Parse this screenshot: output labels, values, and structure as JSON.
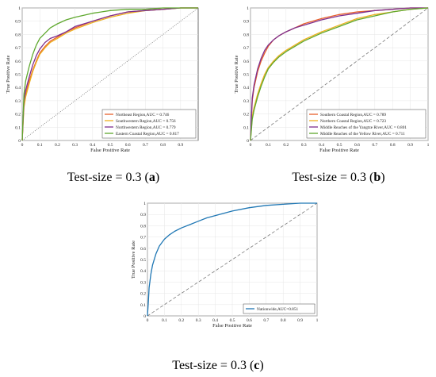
{
  "captions": [
    {
      "prefix": "Test-size = 0.3 (",
      "letter": "a",
      "suffix": ")"
    },
    {
      "prefix": "Test-size = 0.3 (",
      "letter": "b",
      "suffix": ")"
    },
    {
      "prefix": "Test-size = 0.3 (",
      "letter": "c",
      "suffix": ")"
    }
  ],
  "chart_data": [
    {
      "type": "line",
      "panel": "a",
      "xlabel": "False Positive Rate",
      "ylabel": "True Positive Rate",
      "xlim": [
        0,
        1
      ],
      "ylim": [
        0,
        1
      ],
      "xticks": [
        "0",
        "0.1",
        "0.2",
        "0.3",
        "0.4",
        "0.5",
        "0.6",
        "0.7",
        "0.8",
        "0.9"
      ],
      "yticks": [
        "0",
        "0.1",
        "0.2",
        "0.3",
        "0.4",
        "0.5",
        "0.6",
        "0.7",
        "0.8",
        "0.9",
        "1"
      ],
      "grid": true,
      "diagonal": "dotted",
      "legend": "bottom-right",
      "series": [
        {
          "name": "Northeast Region,AUC = 0.746",
          "color": "#e8602c",
          "x": [
            0,
            0.01,
            0.02,
            0.04,
            0.06,
            0.08,
            0.1,
            0.13,
            0.16,
            0.2,
            0.25,
            0.3,
            0.4,
            0.5,
            0.6,
            0.7,
            0.8,
            0.9,
            1
          ],
          "y": [
            0,
            0.28,
            0.35,
            0.45,
            0.53,
            0.6,
            0.66,
            0.71,
            0.75,
            0.78,
            0.82,
            0.85,
            0.9,
            0.94,
            0.97,
            0.98,
            0.99,
            1,
            1
          ]
        },
        {
          "name": "Southwestern Region,AUC = 0.756",
          "color": "#edb120",
          "x": [
            0,
            0.01,
            0.02,
            0.04,
            0.06,
            0.08,
            0.1,
            0.13,
            0.16,
            0.2,
            0.25,
            0.3,
            0.4,
            0.5,
            0.6,
            0.7,
            0.8,
            0.9,
            1
          ],
          "y": [
            0,
            0.25,
            0.33,
            0.43,
            0.52,
            0.59,
            0.65,
            0.7,
            0.74,
            0.77,
            0.81,
            0.84,
            0.89,
            0.93,
            0.96,
            0.98,
            0.99,
            1,
            1
          ]
        },
        {
          "name": "Northwestern Region,AUC = 0.779",
          "color": "#7e2f8e",
          "x": [
            0,
            0.01,
            0.02,
            0.04,
            0.06,
            0.08,
            0.1,
            0.13,
            0.16,
            0.2,
            0.25,
            0.3,
            0.4,
            0.5,
            0.6,
            0.7,
            0.8,
            0.9,
            1
          ],
          "y": [
            0,
            0.3,
            0.38,
            0.48,
            0.57,
            0.64,
            0.69,
            0.74,
            0.77,
            0.79,
            0.82,
            0.86,
            0.9,
            0.94,
            0.97,
            0.98,
            0.99,
            1,
            1
          ]
        },
        {
          "name": "Eastern Coastal Region,AUC = 0.817",
          "color": "#5fa82e",
          "x": [
            0,
            0.01,
            0.02,
            0.04,
            0.06,
            0.08,
            0.1,
            0.13,
            0.16,
            0.2,
            0.25,
            0.3,
            0.4,
            0.5,
            0.6,
            0.7,
            0.8,
            0.9,
            1
          ],
          "y": [
            0,
            0.35,
            0.45,
            0.56,
            0.65,
            0.72,
            0.77,
            0.81,
            0.85,
            0.88,
            0.91,
            0.93,
            0.96,
            0.98,
            0.99,
            0.99,
            1,
            1,
            1
          ]
        }
      ]
    },
    {
      "type": "line",
      "panel": "b",
      "xlabel": "False Positive Rate",
      "ylabel": "True Positive Rate",
      "xlim": [
        0,
        1
      ],
      "ylim": [
        0,
        1
      ],
      "xticks": [
        "0",
        "0.1",
        "0.2",
        "0.3",
        "0.4",
        "0.5",
        "0.6",
        "0.7",
        "0.8",
        "0.9",
        "1"
      ],
      "yticks": [
        "0",
        "0.1",
        "0.2",
        "0.3",
        "0.4",
        "0.5",
        "0.6",
        "0.7",
        "0.8",
        "0.9",
        "1"
      ],
      "grid": true,
      "diagonal": "dashed",
      "legend": "bottom-right",
      "series": [
        {
          "name": "Southern Coastal Region,AUC = 0.789",
          "color": "#e8602c",
          "x": [
            0,
            0.01,
            0.02,
            0.04,
            0.06,
            0.08,
            0.1,
            0.13,
            0.16,
            0.2,
            0.25,
            0.3,
            0.4,
            0.5,
            0.6,
            0.7,
            0.8,
            0.9,
            1
          ],
          "y": [
            0,
            0.3,
            0.4,
            0.52,
            0.6,
            0.66,
            0.71,
            0.76,
            0.79,
            0.82,
            0.85,
            0.88,
            0.92,
            0.95,
            0.97,
            0.98,
            0.99,
            1,
            1
          ]
        },
        {
          "name": "Northern Coastal Region,AUC = 0.723",
          "color": "#edb120",
          "x": [
            0,
            0.01,
            0.02,
            0.04,
            0.06,
            0.08,
            0.1,
            0.13,
            0.16,
            0.2,
            0.25,
            0.3,
            0.4,
            0.5,
            0.6,
            0.7,
            0.8,
            0.9,
            1
          ],
          "y": [
            0,
            0.18,
            0.25,
            0.35,
            0.43,
            0.5,
            0.55,
            0.6,
            0.64,
            0.68,
            0.72,
            0.76,
            0.82,
            0.87,
            0.92,
            0.95,
            0.97,
            0.99,
            1
          ]
        },
        {
          "name": "Middle Reaches of the Yangtze River,AUC = 0.801",
          "color": "#7e2f8e",
          "x": [
            0,
            0.01,
            0.02,
            0.04,
            0.06,
            0.08,
            0.1,
            0.13,
            0.16,
            0.2,
            0.25,
            0.3,
            0.4,
            0.5,
            0.6,
            0.7,
            0.8,
            0.9,
            1
          ],
          "y": [
            0,
            0.32,
            0.42,
            0.54,
            0.62,
            0.68,
            0.72,
            0.76,
            0.79,
            0.82,
            0.85,
            0.87,
            0.91,
            0.94,
            0.96,
            0.98,
            0.99,
            1,
            1
          ]
        },
        {
          "name": "Middle Reaches of the Yellow River,AUC = 0.711",
          "color": "#5fa82e",
          "x": [
            0,
            0.01,
            0.02,
            0.04,
            0.06,
            0.08,
            0.1,
            0.13,
            0.16,
            0.2,
            0.25,
            0.3,
            0.4,
            0.5,
            0.6,
            0.7,
            0.8,
            0.9,
            1
          ],
          "y": [
            0,
            0.16,
            0.23,
            0.33,
            0.41,
            0.48,
            0.54,
            0.59,
            0.63,
            0.67,
            0.71,
            0.75,
            0.81,
            0.86,
            0.91,
            0.94,
            0.97,
            0.99,
            1
          ]
        }
      ]
    },
    {
      "type": "line",
      "panel": "c",
      "xlabel": "False Positive Rate",
      "ylabel": "True Positive Rate",
      "xlim": [
        0,
        1
      ],
      "ylim": [
        0,
        1
      ],
      "xticks": [
        "0",
        "0.1",
        "0.2",
        "0.3",
        "0.4",
        "0.5",
        "0.6",
        "0.7",
        "0.8",
        "0.9",
        "1"
      ],
      "yticks": [
        "0",
        "0.1",
        "0.2",
        "0.3",
        "0.4",
        "0.5",
        "0.6",
        "0.7",
        "0.8",
        "0.9",
        "1"
      ],
      "grid": true,
      "diagonal": "dashed",
      "legend": "bottom-right",
      "series": [
        {
          "name": "Nationwide,AUC=0.851",
          "color": "#1f77b4",
          "x": [
            0,
            0.005,
            0.01,
            0.02,
            0.03,
            0.05,
            0.07,
            0.1,
            0.13,
            0.16,
            0.2,
            0.25,
            0.3,
            0.35,
            0.4,
            0.5,
            0.6,
            0.7,
            0.8,
            0.9,
            1
          ],
          "y": [
            0,
            0.12,
            0.25,
            0.37,
            0.45,
            0.55,
            0.62,
            0.68,
            0.72,
            0.75,
            0.78,
            0.81,
            0.84,
            0.87,
            0.89,
            0.93,
            0.96,
            0.98,
            0.99,
            1,
            1
          ]
        }
      ]
    }
  ]
}
